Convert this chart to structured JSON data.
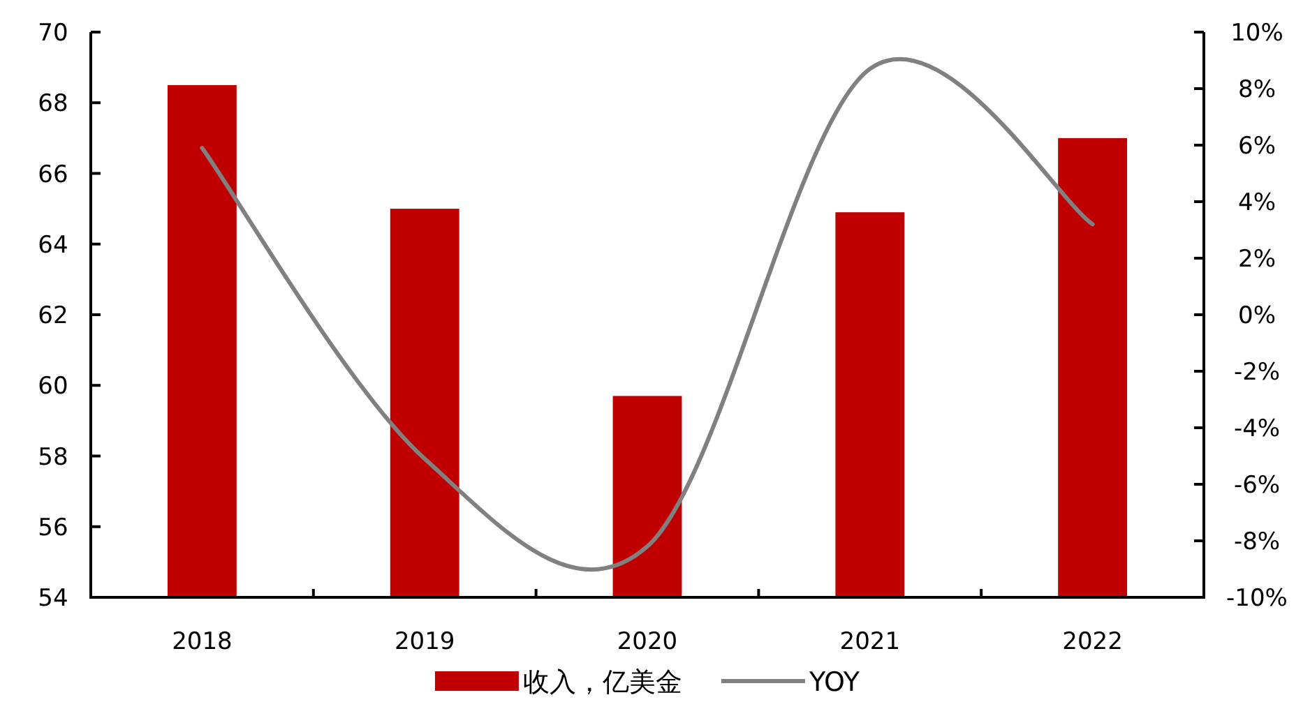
{
  "chart_data": {
    "type": "bar",
    "categories": [
      "2018",
      "2019",
      "2020",
      "2021",
      "2022"
    ],
    "series": [
      {
        "name": "收入，亿美金",
        "color": "#c00000",
        "values": [
          68.5,
          65.0,
          59.7,
          64.9,
          67.0
        ]
      },
      {
        "name": "YOY",
        "type": "line",
        "axis": "y2",
        "color": "#808080",
        "values": [
          5.9,
          -5.1,
          -8.2,
          8.7,
          3.2
        ]
      }
    ],
    "ylim": [
      54,
      70
    ],
    "yticks": [
      54,
      56,
      58,
      60,
      62,
      64,
      66,
      68,
      70
    ],
    "y2lim": [
      -10,
      10
    ],
    "y2ticks": [
      {
        "value": -10,
        "label": "-10%"
      },
      {
        "value": -8,
        "label": "-8%"
      },
      {
        "value": -6,
        "label": "-6%"
      },
      {
        "value": -4,
        "label": "-4%"
      },
      {
        "value": -2,
        "label": "-2%"
      },
      {
        "value": 0,
        "label": "0%"
      },
      {
        "value": 2,
        "label": "2%"
      },
      {
        "value": 4,
        "label": "4%"
      },
      {
        "value": 6,
        "label": "6%"
      },
      {
        "value": 8,
        "label": "8%"
      },
      {
        "value": 10,
        "label": "10%"
      }
    ],
    "grid": false,
    "legend": "bottom"
  }
}
